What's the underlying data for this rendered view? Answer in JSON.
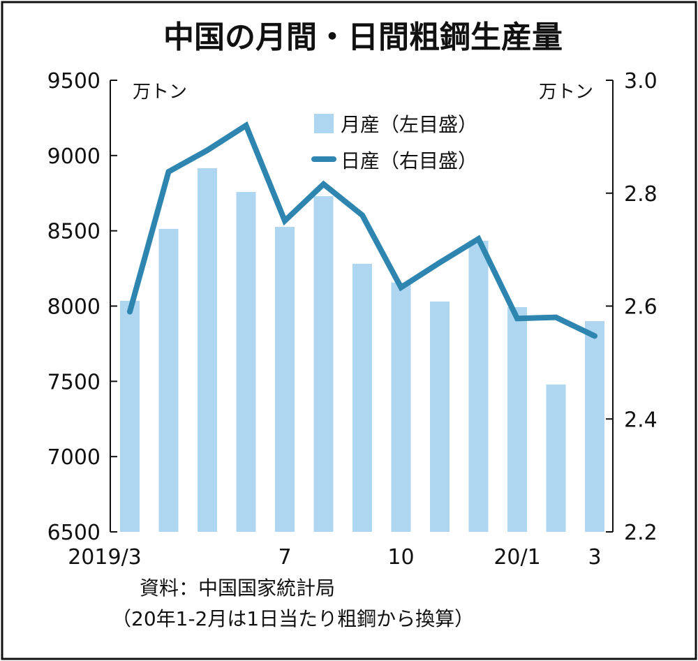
{
  "chart_data": {
    "type": "bar+line",
    "title": "中国の月間・日間粗鋼生産量",
    "categories": [
      "2019/3",
      "4",
      "5",
      "6",
      "7",
      "8",
      "9",
      "10",
      "11",
      "12",
      "20/1",
      "2",
      "3"
    ],
    "x_tick_labels": [
      {
        "index": 0,
        "label": "2019/3"
      },
      {
        "index": 4,
        "label": "7"
      },
      {
        "index": 7,
        "label": "10"
      },
      {
        "index": 10,
        "label": "20/1"
      },
      {
        "index": 12,
        "label": "3"
      }
    ],
    "series": [
      {
        "name": "月産（左目盛）",
        "type": "bar",
        "axis": "left",
        "color": "#aed6f1",
        "values": [
          8035,
          8513,
          8916,
          8758,
          8526,
          8730,
          8281,
          8156,
          8030,
          8434,
          7993,
          7479,
          7900
        ]
      },
      {
        "name": "日産（右目盛）",
        "type": "line",
        "axis": "right",
        "color": "#2e86b0",
        "values": [
          2.59,
          2.838,
          2.876,
          2.92,
          2.751,
          2.816,
          2.761,
          2.633,
          2.677,
          2.719,
          2.578,
          2.58,
          2.547
        ]
      }
    ],
    "left_axis": {
      "unit": "万トン",
      "ylim": [
        6500,
        9500
      ],
      "ticks": [
        "9500",
        "9000",
        "8500",
        "8000",
        "7500",
        "7000",
        "6500"
      ],
      "tick_values": [
        9500,
        9000,
        8500,
        8000,
        7500,
        7000,
        6500
      ]
    },
    "right_axis": {
      "unit": "万トン",
      "ylim": [
        2.2,
        3.0
      ],
      "ticks": [
        "3.0",
        "2.8",
        "2.6",
        "2.4",
        "2.2"
      ],
      "tick_values": [
        3.0,
        2.8,
        2.6,
        2.4,
        2.2
      ]
    },
    "legend_position": "top-center",
    "source": "資料：中国国家統計局",
    "note": "（20年1-2月は1日当たり粗鋼から換算）"
  }
}
